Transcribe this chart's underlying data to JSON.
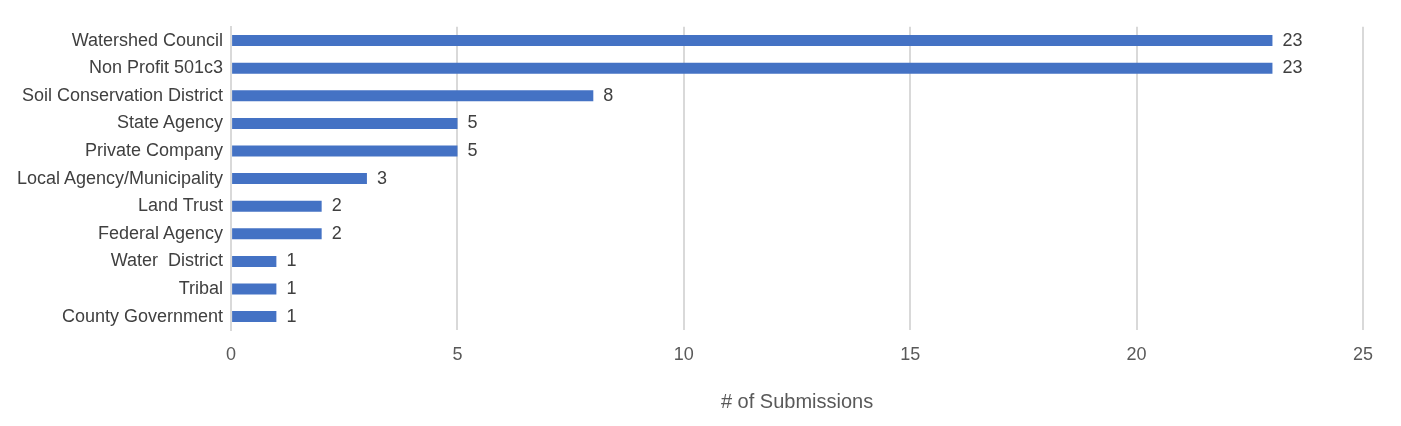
{
  "chart_data": {
    "type": "bar",
    "orientation": "horizontal",
    "xlabel": "# of Submissions",
    "categories": [
      "Watershed Council",
      "Non Profit 501c3",
      "Soil Conservation District",
      "State Agency",
      "Private Company",
      "Local Agency/Municipality",
      "Land Trust",
      "Federal Agency",
      "Water  District",
      "Tribal",
      "County Government"
    ],
    "values": [
      23,
      23,
      8,
      5,
      5,
      3,
      2,
      2,
      1,
      1,
      1
    ],
    "color": "#4472c4",
    "xlim": [
      0,
      25
    ],
    "xticks": [
      0,
      5,
      10,
      15,
      20,
      25
    ],
    "grid": "x",
    "data_labels": true,
    "legend": false
  }
}
